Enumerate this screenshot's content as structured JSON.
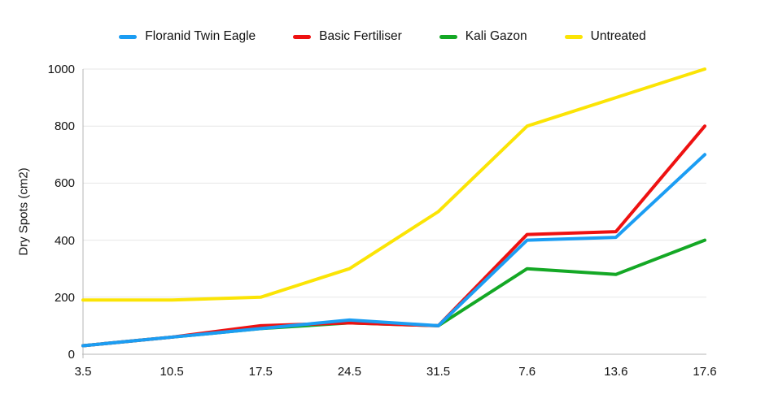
{
  "chart_data": {
    "type": "line",
    "title": "",
    "xlabel": "",
    "ylabel": "Dry Spots (cm2)",
    "categories": [
      "3.5",
      "10.5",
      "17.5",
      "24.5",
      "31.5",
      "7.6",
      "13.6",
      "17.6"
    ],
    "series": [
      {
        "name": "Floranid Twin Eagle",
        "color": "#1b9df3",
        "values": [
          30,
          60,
          90,
          120,
          100,
          400,
          410,
          700
        ]
      },
      {
        "name": "Basic Fertiliser",
        "color": "#ee1111",
        "values": [
          30,
          60,
          100,
          110,
          100,
          420,
          430,
          800
        ]
      },
      {
        "name": "Kali Gazon",
        "color": "#14a825",
        "values": [
          30,
          60,
          90,
          110,
          100,
          300,
          280,
          400
        ]
      },
      {
        "name": "Untreated",
        "color": "#fbe405",
        "values": [
          190,
          190,
          200,
          300,
          500,
          800,
          900,
          1000
        ]
      }
    ],
    "ylim": [
      0,
      1000
    ],
    "yticks": [
      0,
      200,
      400,
      600,
      800,
      1000
    ],
    "grid": true,
    "legend_position": "top",
    "gridline_color": "#e7e7e7",
    "axis_color": "#b5b5b5"
  }
}
